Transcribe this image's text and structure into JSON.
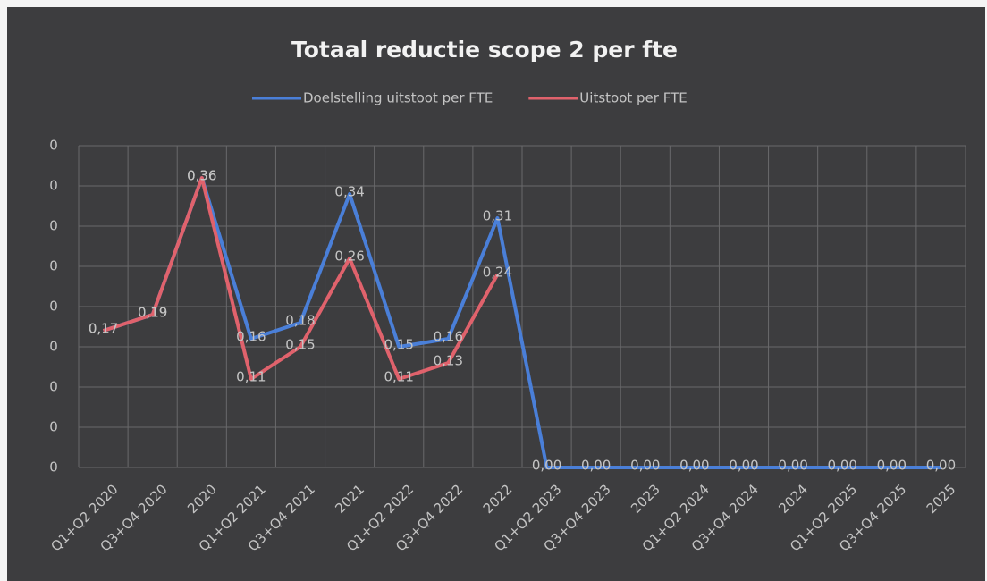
{
  "chart_data": {
    "type": "line",
    "title": "Totaal reductie scope 2 per fte",
    "categories": [
      "Q1+Q2 2020",
      "Q3+Q4 2020",
      "2020",
      "Q1+Q2 2021",
      "Q3+Q4 2021",
      "2021",
      "Q1+Q2 2022",
      "Q3+Q4 2022",
      "2022",
      "Q1+Q2 2023",
      "Q3+Q4 2023",
      "2023",
      "Q1+Q2 2024",
      "Q3+Q4 2024",
      "2024",
      "Q1+Q2 2025",
      "Q3+Q4 2025",
      "2025"
    ],
    "series": [
      {
        "name": "Doelstelling uitstoot per FTE",
        "color": "#4a7fd8",
        "values": [
          0.17,
          0.19,
          0.36,
          0.16,
          0.18,
          0.34,
          0.15,
          0.16,
          0.31,
          0,
          0,
          0,
          0,
          0,
          0,
          0,
          0,
          0
        ],
        "value_labels": [
          "0,17",
          "0,19",
          "0,36",
          "0,16",
          "0,18",
          "0,34",
          "0,15",
          "0,16",
          "0,31",
          "0,00",
          "0,00",
          "0,00",
          "0,00",
          "0,00",
          "0,00",
          "0,00",
          "0,00",
          "0,00"
        ]
      },
      {
        "name": "Uitstoot per FTE",
        "color": "#e0626c",
        "values": [
          0.17,
          0.19,
          0.36,
          0.11,
          0.15,
          0.26,
          0.11,
          0.13,
          0.24,
          null,
          null,
          null,
          null,
          null,
          null,
          null,
          null,
          null
        ],
        "value_labels": [
          "0,17",
          "0,19",
          "0,36",
          "0,11",
          "0,15",
          "0,26",
          "0,11",
          "0,13",
          "0,24",
          null,
          null,
          null,
          null,
          null,
          null,
          null,
          null,
          null
        ]
      }
    ],
    "ylim": [
      0,
      0.4
    ],
    "yticks": [
      0,
      {
        "value": 0.05,
        "label": "0"
      },
      {
        "value": 0.1,
        "label": "0"
      },
      {
        "value": 0.15,
        "label": "0"
      },
      {
        "value": 0.2,
        "label": "0"
      },
      {
        "value": 0.25,
        "label": "0"
      },
      {
        "value": 0.3,
        "label": "0"
      },
      {
        "value": 0.35,
        "label": "0"
      },
      {
        "value": 0.4,
        "label": "0"
      }
    ],
    "grid": true,
    "legend": "top"
  }
}
